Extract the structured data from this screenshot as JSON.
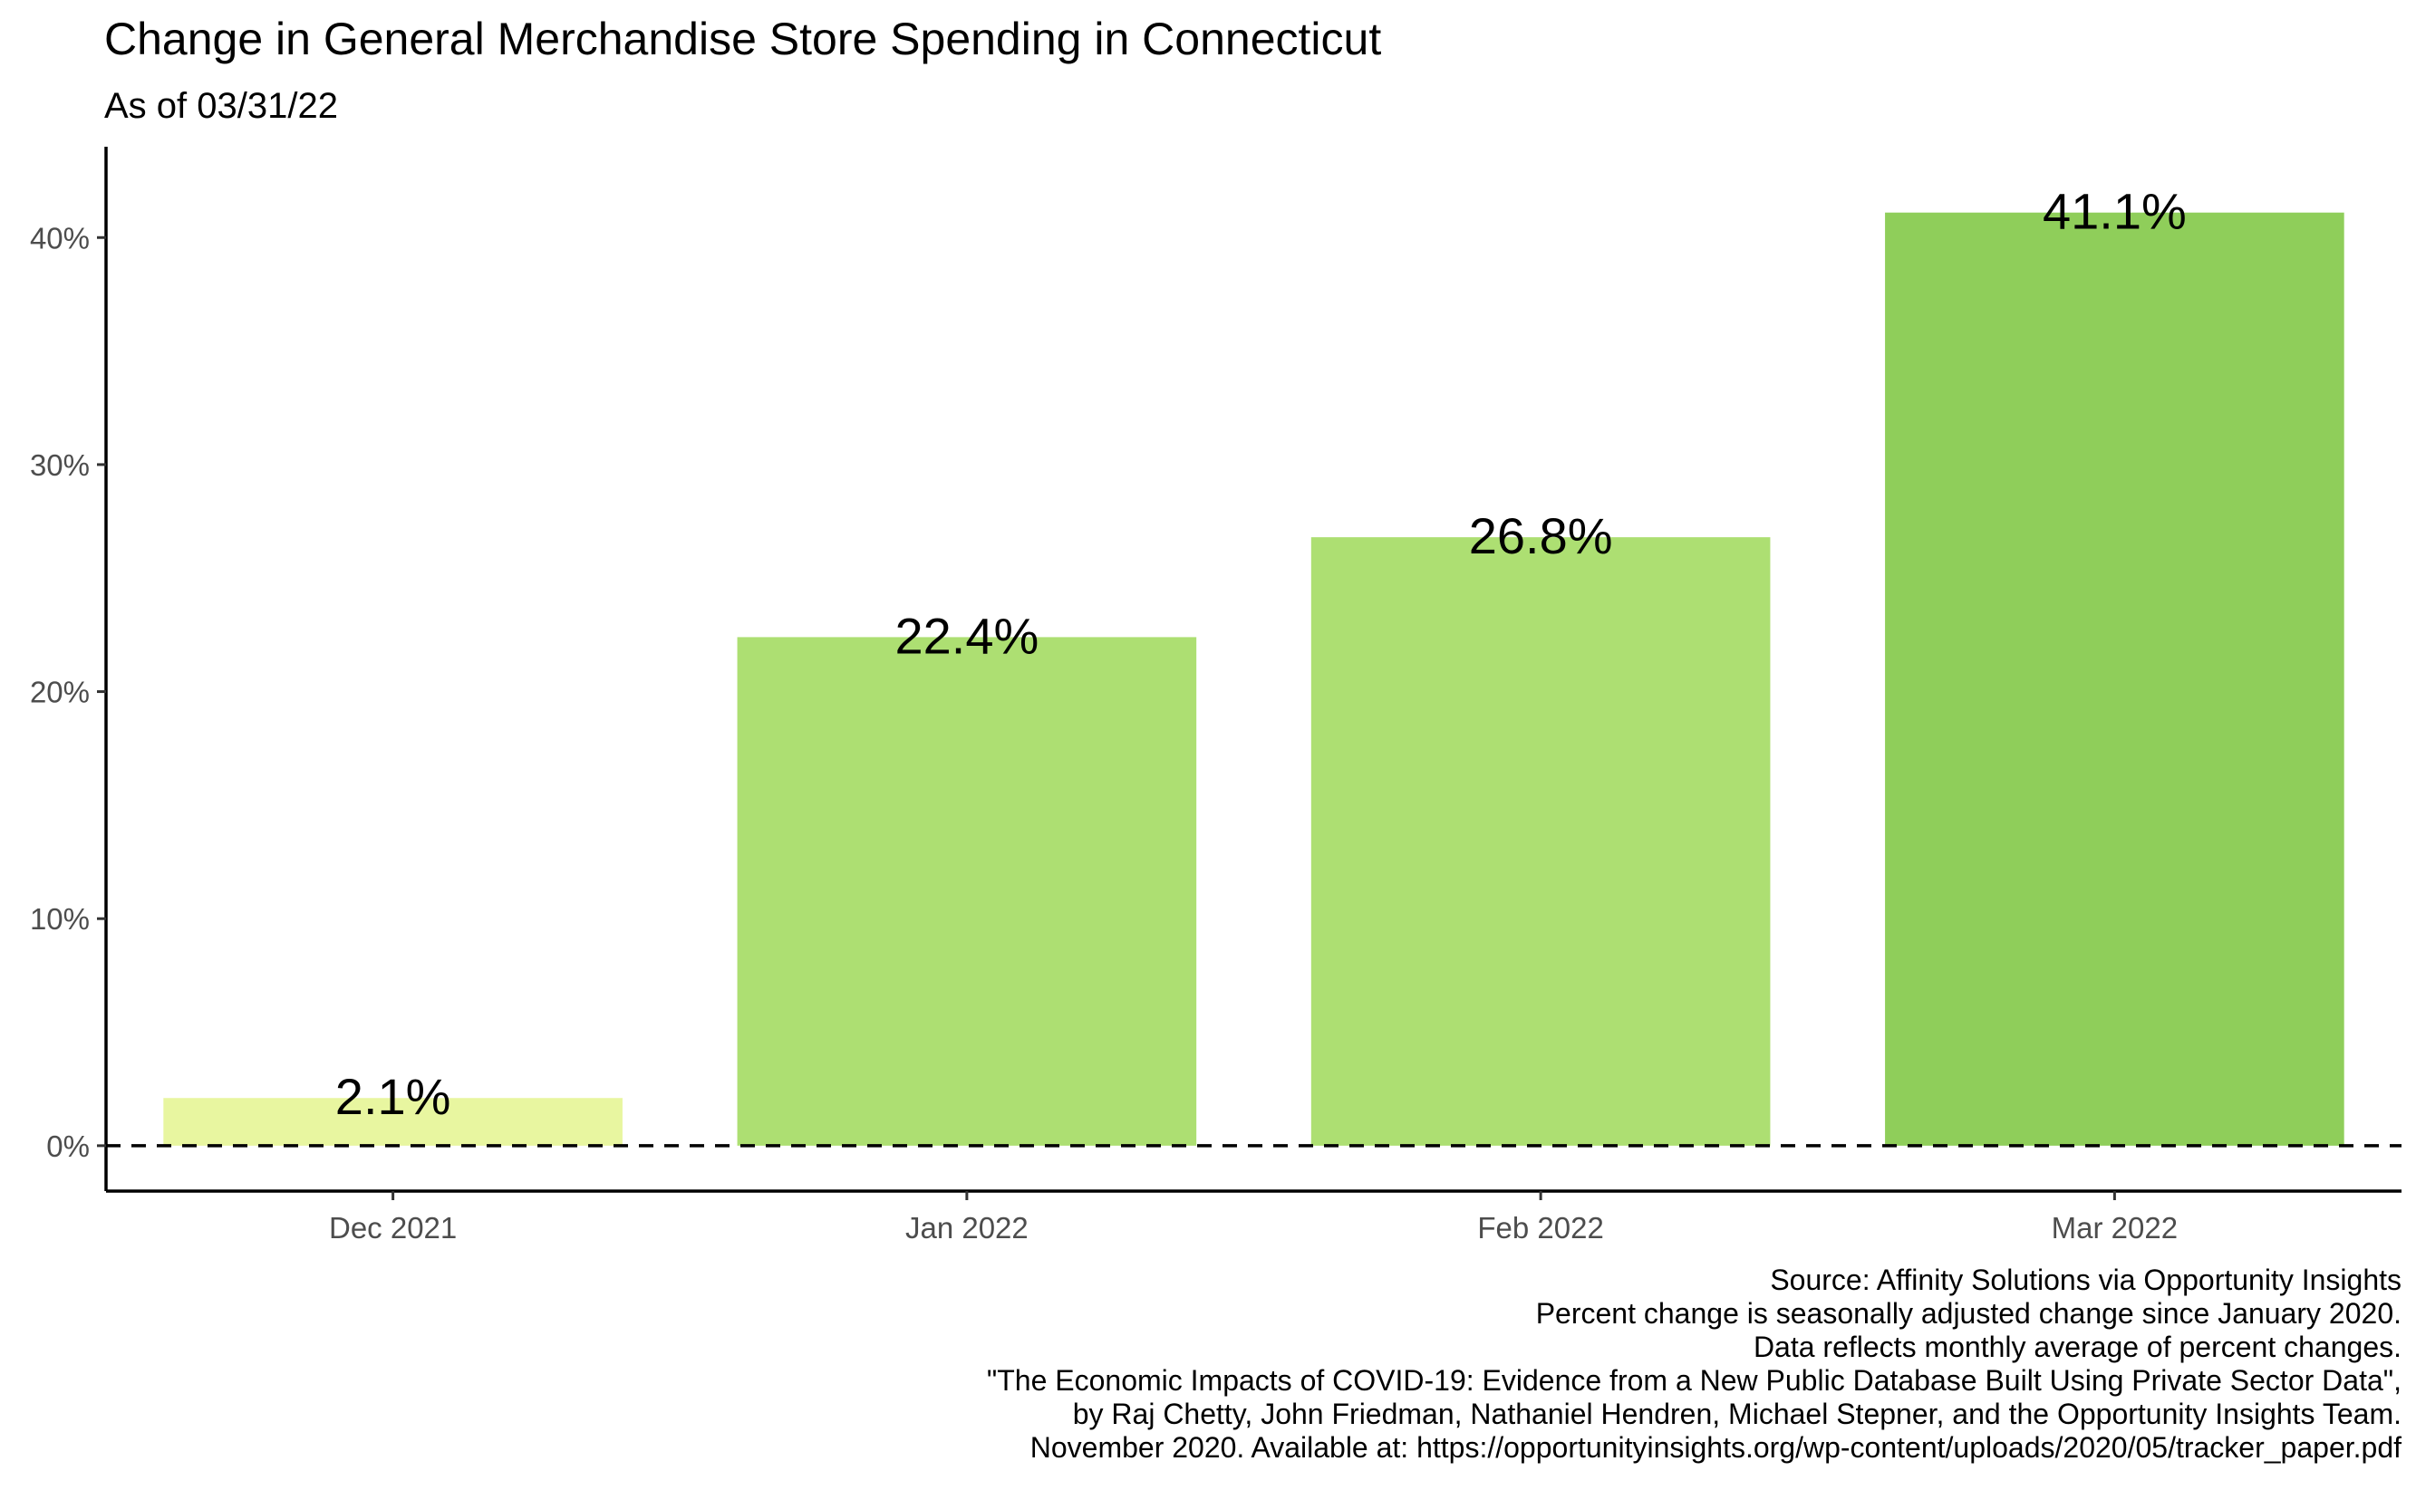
{
  "chart_data": {
    "type": "bar",
    "title": "Change in General Merchandise Store Spending in Connecticut",
    "subtitle": "As of 03/31/22",
    "categories": [
      "Dec 2021",
      "Jan 2022",
      "Feb 2022",
      "Mar 2022"
    ],
    "values": [
      2.1,
      22.4,
      26.8,
      41.1
    ],
    "value_labels": [
      "2.1%",
      "22.4%",
      "26.8%",
      "41.1%"
    ],
    "bar_colors": [
      "#e8f6a0",
      "#addf72",
      "#addf72",
      "#8fce5a"
    ],
    "y_ticks": [
      0,
      10,
      20,
      30,
      40
    ],
    "y_tick_labels": [
      "0%",
      "10%",
      "20%",
      "30%",
      "40%"
    ],
    "ylim": [
      -2,
      44
    ],
    "reference_line": {
      "value": 0,
      "style": "dashed"
    },
    "xlabel": "",
    "ylabel": "",
    "grid": false,
    "legend": "none",
    "caption_lines": [
      "Source: Affinity Solutions via Opportunity Insights",
      "Percent change is seasonally adjusted change since January 2020.",
      "Data reflects monthly average of percent changes.",
      "\"The Economic Impacts of COVID-19: Evidence from a New Public Database Built Using Private Sector Data\",",
      "by Raj Chetty, John Friedman, Nathaniel Hendren, Michael Stepner, and the Opportunity Insights Team.",
      "November 2020. Available at: https://opportunityinsights.org/wp-content/uploads/2020/05/tracker_paper.pdf"
    ]
  }
}
